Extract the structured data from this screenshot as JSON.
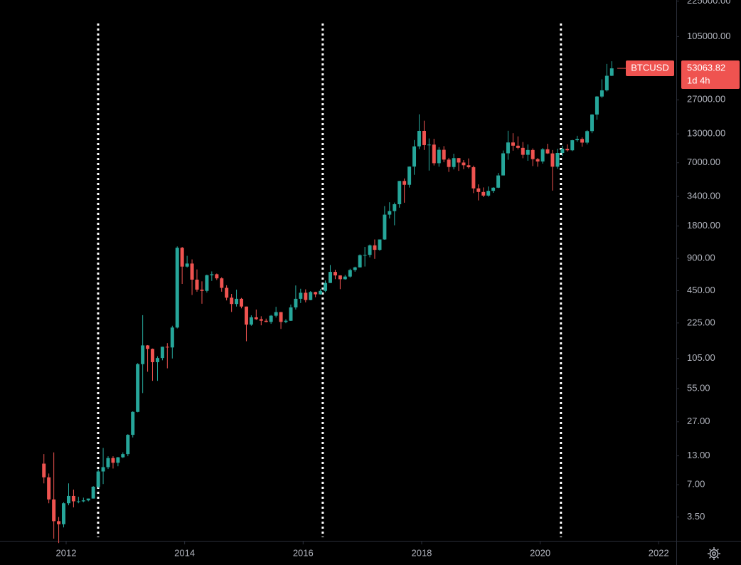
{
  "chart_data": {
    "type": "candlestick",
    "symbol": "BTCUSD",
    "last_price": 53063.82,
    "countdown": "1d 4h",
    "log_scale": true,
    "up_color": "#26a69a",
    "down_color": "#ef5350",
    "vlines": [
      2012.54,
      2016.33,
      2020.35
    ],
    "xlim": [
      2010.884,
      2022.285
    ],
    "xticks": [
      2012,
      2014,
      2016,
      2018,
      2020,
      2022
    ],
    "ylim": [
      2.1,
      230000
    ],
    "yticks": [
      {
        "value": 3.5,
        "label": "3.50"
      },
      {
        "value": 7,
        "label": "7.00"
      },
      {
        "value": 13,
        "label": "13.00"
      },
      {
        "value": 27,
        "label": "27.00"
      },
      {
        "value": 55,
        "label": "55.00"
      },
      {
        "value": 105,
        "label": "105.00"
      },
      {
        "value": 225,
        "label": "225.00"
      },
      {
        "value": 450,
        "label": "450.00"
      },
      {
        "value": 900,
        "label": "900.00"
      },
      {
        "value": 1800,
        "label": "1800.00"
      },
      {
        "value": 3400,
        "label": "3400.00"
      },
      {
        "value": 7000,
        "label": "7000.00"
      },
      {
        "value": 13000,
        "label": "13000.00"
      },
      {
        "value": 27000,
        "label": "27000.00"
      },
      {
        "value": 105000,
        "label": "105000.00"
      },
      {
        "value": 225000,
        "label": "225000.00"
      }
    ],
    "x": [
      2011.625,
      2011.708,
      2011.792,
      2011.875,
      2011.958,
      2012.042,
      2012.125,
      2012.208,
      2012.292,
      2012.375,
      2012.458,
      2012.542,
      2012.625,
      2012.708,
      2012.792,
      2012.875,
      2012.958,
      2013.042,
      2013.125,
      2013.208,
      2013.292,
      2013.375,
      2013.458,
      2013.542,
      2013.625,
      2013.708,
      2013.792,
      2013.875,
      2013.958,
      2014.042,
      2014.125,
      2014.208,
      2014.292,
      2014.375,
      2014.458,
      2014.542,
      2014.625,
      2014.708,
      2014.792,
      2014.875,
      2014.958,
      2015.042,
      2015.125,
      2015.208,
      2015.292,
      2015.375,
      2015.458,
      2015.542,
      2015.625,
      2015.708,
      2015.792,
      2015.875,
      2015.958,
      2016.042,
      2016.125,
      2016.208,
      2016.292,
      2016.375,
      2016.458,
      2016.542,
      2016.625,
      2016.708,
      2016.792,
      2016.875,
      2016.958,
      2017.042,
      2017.125,
      2017.208,
      2017.292,
      2017.375,
      2017.458,
      2017.542,
      2017.625,
      2017.708,
      2017.792,
      2017.875,
      2017.958,
      2018.042,
      2018.125,
      2018.208,
      2018.292,
      2018.375,
      2018.458,
      2018.542,
      2018.625,
      2018.708,
      2018.792,
      2018.875,
      2018.958,
      2019.042,
      2019.125,
      2019.208,
      2019.292,
      2019.375,
      2019.458,
      2019.542,
      2019.625,
      2019.708,
      2019.792,
      2019.875,
      2019.958,
      2020.042,
      2020.125,
      2020.208,
      2020.292,
      2020.375,
      2020.458,
      2020.542,
      2020.625,
      2020.708,
      2020.792,
      2020.875,
      2020.958,
      2021.042,
      2021.125,
      2021.208
    ],
    "open": [
      11.0,
      8.2,
      5.1,
      3.2,
      3.0,
      4.7,
      5.5,
      4.9,
      4.9,
      5.0,
      5.2,
      6.7,
      9.3,
      10.2,
      12.4,
      11.2,
      12.6,
      13.5,
      20.4,
      33.4,
      93,
      139,
      129,
      97,
      106,
      135,
      133,
      204,
      1130,
      754,
      805,
      570,
      460,
      448,
      627,
      640,
      586,
      478,
      387,
      338,
      378,
      320,
      217,
      254,
      244,
      236,
      230,
      263,
      284,
      230,
      236,
      314,
      378,
      430,
      368,
      437,
      416,
      448,
      531,
      673,
      624,
      575,
      609,
      701,
      742,
      964,
      970,
      1190,
      1080,
      1350,
      2300,
      2480,
      2875,
      4735,
      4360,
      6450,
      9950,
      13860,
      10220,
      10330,
      6930,
      9240,
      7490,
      6390,
      7730,
      7030,
      6630,
      6370,
      4040,
      3740,
      3460,
      3830,
      4100,
      5330,
      8570,
      10820,
      10090,
      9630,
      8300,
      9200,
      7570,
      7200,
      9350,
      8550,
      6430,
      8630,
      9450,
      9140,
      11350,
      11660,
      10780,
      13800,
      19700,
      28990,
      33110,
      45240
    ],
    "high": [
      13.5,
      8.9,
      14,
      3.5,
      4.8,
      7.2,
      6.3,
      5.4,
      5.3,
      5.2,
      6.8,
      9.7,
      15.4,
      12.9,
      12.9,
      12.7,
      14.0,
      20.7,
      33.8,
      95,
      266,
      140,
      130,
      110,
      135,
      146,
      212,
      1163,
      1150,
      950,
      880,
      710,
      550,
      635,
      680,
      650,
      600,
      505,
      420,
      460,
      385,
      320,
      265,
      300,
      260,
      247,
      267,
      318,
      285,
      244,
      334,
      503,
      469,
      463,
      446,
      440,
      467,
      560,
      780,
      705,
      626,
      631,
      720,
      753,
      979,
      1150,
      1210,
      1350,
      1350,
      2760,
      3000,
      2980,
      4740,
      5000,
      6470,
      11400,
      19800,
      17250,
      11790,
      11700,
      9770,
      10000,
      7770,
      8500,
      7760,
      7410,
      7680,
      6580,
      4400,
      4120,
      4210,
      4140,
      5620,
      9100,
      13900,
      13200,
      12330,
      10920,
      10370,
      9520,
      7750,
      9580,
      10520,
      9200,
      9460,
      10080,
      10380,
      11450,
      12480,
      12060,
      14100,
      19880,
      29300,
      41950,
      58350,
      61780
    ],
    "low": [
      7.2,
      4.7,
      2.2,
      2.0,
      2.8,
      4.5,
      4.3,
      4.7,
      4.8,
      4.9,
      5.2,
      6.5,
      7.1,
      9.8,
      9.9,
      10.4,
      12.4,
      12.9,
      19.3,
      33.1,
      50,
      79,
      65,
      65,
      101,
      85,
      105,
      200,
      520,
      740,
      410,
      440,
      340,
      432,
      555,
      566,
      440,
      365,
      285,
      320,
      308,
      152,
      212,
      240,
      214,
      228,
      221,
      253,
      198,
      224,
      235,
      300,
      345,
      350,
      366,
      391,
      414,
      436,
      530,
      576,
      465,
      570,
      596,
      675,
      740,
      755,
      920,
      890,
      1060,
      1340,
      2120,
      1830,
      2670,
      2970,
      4110,
      5400,
      9400,
      9200,
      5920,
      6600,
      6430,
      7090,
      5750,
      6070,
      5880,
      6100,
      6200,
      3650,
      3120,
      3350,
      3380,
      3670,
      4060,
      5330,
      7460,
      9070,
      9330,
      7710,
      7300,
      6520,
      6430,
      6870,
      8450,
      3850,
      6150,
      8100,
      8900,
      8980,
      10980,
      9880,
      10370,
      13200,
      17600,
      28130,
      32300,
      44960
    ],
    "close": [
      8.2,
      5.1,
      3.2,
      3.0,
      4.7,
      5.5,
      4.9,
      4.9,
      5.0,
      5.2,
      6.7,
      9.3,
      10.2,
      12.4,
      11.2,
      12.6,
      13.5,
      20.4,
      33.4,
      93,
      139,
      129,
      97,
      106,
      135,
      133,
      204,
      1130,
      754,
      805,
      570,
      460,
      448,
      627,
      640,
      586,
      478,
      387,
      338,
      378,
      320,
      217,
      254,
      244,
      236,
      230,
      263,
      284,
      230,
      236,
      314,
      378,
      430,
      368,
      437,
      416,
      448,
      531,
      673,
      624,
      575,
      609,
      701,
      742,
      964,
      970,
      1190,
      1080,
      1350,
      2300,
      2480,
      2875,
      4735,
      4360,
      6450,
      9950,
      13860,
      10220,
      10330,
      6930,
      9240,
      7490,
      6390,
      7730,
      7030,
      6630,
      6370,
      4040,
      3740,
      3460,
      3830,
      4100,
      5330,
      8570,
      10820,
      10090,
      9630,
      8300,
      9200,
      7570,
      7200,
      9350,
      8550,
      6430,
      8630,
      9450,
      9140,
      11350,
      11660,
      10780,
      13800,
      19700,
      28990,
      33110,
      45240,
      53063.82
    ]
  }
}
